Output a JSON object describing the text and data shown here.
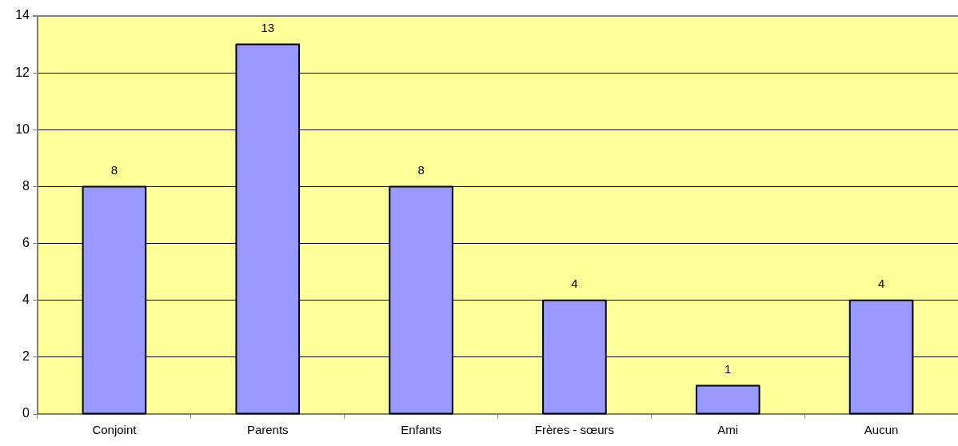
{
  "chart_data": {
    "type": "bar",
    "categories": [
      "Conjoint",
      "Parents",
      "Enfants",
      "Frères - sœurs",
      "Ami",
      "Aucun"
    ],
    "values": [
      8,
      13,
      8,
      4,
      1,
      4
    ],
    "color": "#9999ff",
    "ylim": [
      0,
      14
    ],
    "yticks": [
      0,
      2,
      4,
      6,
      8,
      10,
      12,
      14
    ],
    "grid": "y",
    "data_labels": true
  }
}
